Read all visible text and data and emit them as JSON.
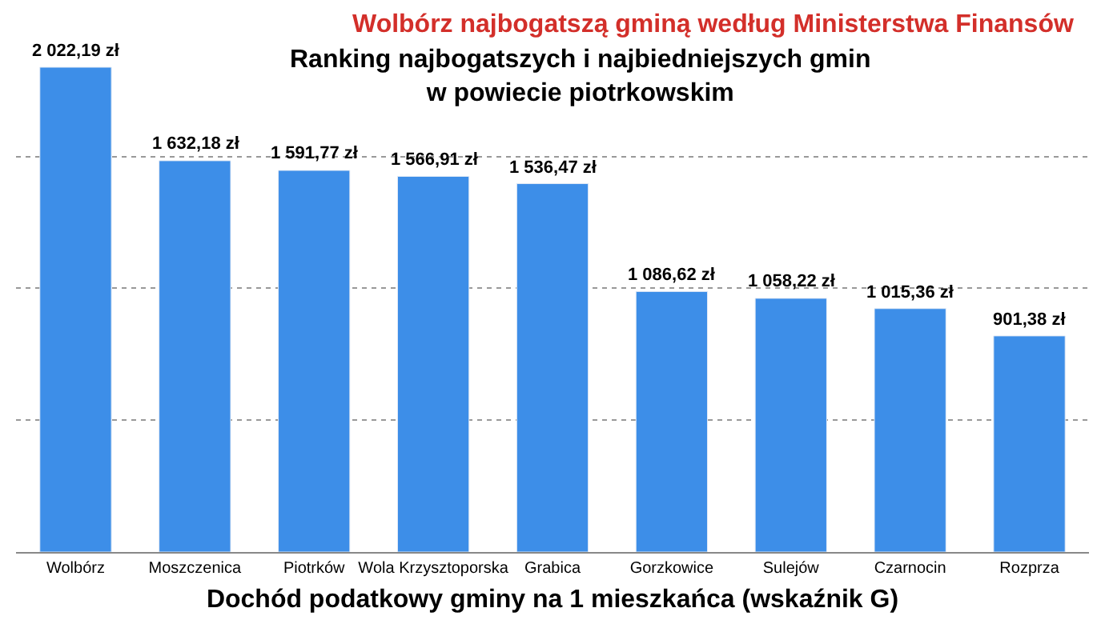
{
  "chart_data": {
    "type": "bar",
    "title": "Wolbórz najbogatszą gminą według Ministerstwa Finansów",
    "subtitle": "Ranking najbogatszych i najbiedniejszych gmin\nw powiecie piotrkowskim",
    "xlabel": "Dochód podatkowy gminy na 1 mieszkańca (wskaźnik G)",
    "categories": [
      "Wolbórz",
      "Moszczenica",
      "Piotrków",
      "Wola Krzysztoporska",
      "Grabica",
      "Gorzkowice",
      "Sulejów",
      "Czarnocin",
      "Rozprza"
    ],
    "values": [
      2022.19,
      1632.18,
      1591.77,
      1566.91,
      1536.47,
      1086.62,
      1058.22,
      1015.36,
      901.38
    ],
    "value_labels": [
      "2 022,19 zł",
      "1 632,18 zł",
      "1 591,77 zł",
      "1 566,91 zł",
      "1 536,47 zł",
      "1 086,62 zł",
      "1 058,22 zł",
      "1 015,36 zł",
      "901,38 zł"
    ],
    "color": "#3d8ee8",
    "yticks": [
      {
        "value": 550,
        "label": null
      },
      {
        "value": 1100,
        "label": null
      },
      {
        "value": 1650,
        "label": null
      }
    ],
    "grid": "y",
    "tick_labels": "x"
  }
}
